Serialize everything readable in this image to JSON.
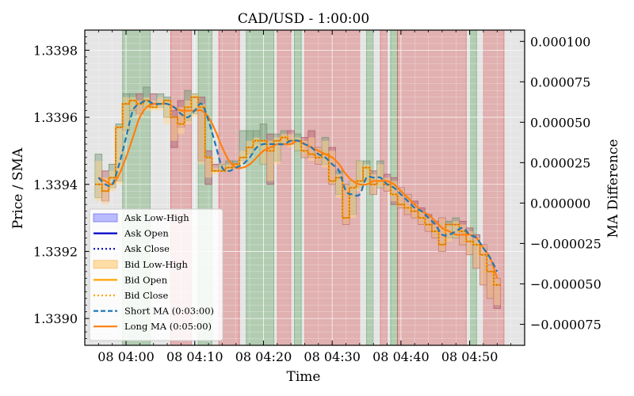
{
  "chart_data": {
    "type": "line",
    "title": "CAD/USD - 1:00:00",
    "xlabel": "Time",
    "ylabel": "Price / SMA",
    "y2label": "MA Difference",
    "xlim": [
      -6,
      58
    ],
    "ylim": [
      1.33892,
      1.33986
    ],
    "y2lim": [
      -8.8e-05,
      0.000107
    ],
    "x_ticks": [
      0,
      10,
      20,
      30,
      40,
      50
    ],
    "x_tick_labels": [
      "08 04:00",
      "08 04:10",
      "08 04:20",
      "08 04:30",
      "08 04:40",
      "08 04:50"
    ],
    "y_ticks": [
      1.339,
      1.3392,
      1.3394,
      1.3396,
      1.3398
    ],
    "y_tick_labels": [
      "1.3390",
      "1.3392",
      "1.3394",
      "1.3396",
      "1.3398"
    ],
    "y2_ticks": [
      -7.5e-05,
      -5e-05,
      -2.5e-05,
      0,
      2.5e-05,
      5e-05,
      7.5e-05,
      0.0001
    ],
    "y2_tick_labels": [
      "−0.000075",
      "−0.000050",
      "−0.000025",
      "0.000000",
      "0.000025",
      "0.000050",
      "0.000075",
      "0.000100"
    ],
    "grid": true,
    "legend_position": "lower-left",
    "colors": {
      "ask": "#0000cc",
      "ask_fill": "#aaaaff",
      "bid": "#ffa500",
      "bid_fill": "#ffd690",
      "short_ma": "#1f77b4",
      "long_ma": "#ff7f0e",
      "bull_region": "#2e8b2e",
      "bear_region": "#d62728",
      "background": "#e5e5e5"
    },
    "regions": [
      {
        "start": -0.5,
        "end": 3.5,
        "trend": "bull"
      },
      {
        "start": 6.5,
        "end": 9.5,
        "trend": "bear"
      },
      {
        "start": 10.5,
        "end": 12.5,
        "trend": "bull"
      },
      {
        "start": 13.5,
        "end": 16.5,
        "trend": "bear"
      },
      {
        "start": 17.5,
        "end": 21.5,
        "trend": "bull"
      },
      {
        "start": 22.0,
        "end": 24.0,
        "trend": "bear"
      },
      {
        "start": 24.5,
        "end": 25.5,
        "trend": "bull"
      },
      {
        "start": 26.0,
        "end": 34.0,
        "trend": "bear"
      },
      {
        "start": 35.0,
        "end": 36.0,
        "trend": "bull"
      },
      {
        "start": 37.0,
        "end": 38.0,
        "trend": "bear"
      },
      {
        "start": 38.5,
        "end": 39.5,
        "trend": "bull"
      },
      {
        "start": 39.5,
        "end": 49.5,
        "trend": "bear"
      },
      {
        "start": 50.0,
        "end": 51.0,
        "trend": "bull"
      },
      {
        "start": 52.0,
        "end": 55.0,
        "trend": "bear"
      }
    ],
    "series": [
      {
        "name": "Bid Close",
        "x": [
          -4,
          -3,
          -2,
          -1,
          0,
          1,
          2,
          3,
          4,
          5,
          6,
          7,
          8,
          9,
          10,
          11,
          12,
          13,
          14,
          15,
          16,
          17,
          18,
          19,
          20,
          21,
          22,
          23,
          24,
          25,
          26,
          27,
          28,
          29,
          30,
          31,
          32,
          33,
          34,
          35,
          36,
          37,
          38,
          39,
          40,
          41,
          42,
          43,
          44,
          45,
          46,
          47,
          48,
          49,
          50,
          51,
          52,
          53,
          54
        ],
        "y": [
          1.3394,
          1.33938,
          1.33942,
          1.33957,
          1.33964,
          1.33965,
          1.33964,
          1.33965,
          1.33963,
          1.33964,
          1.33965,
          1.3396,
          1.33958,
          1.33963,
          1.33966,
          1.33963,
          1.33948,
          1.33944,
          1.33944,
          1.33945,
          1.33946,
          1.33948,
          1.33951,
          1.33953,
          1.33953,
          1.3395,
          1.33953,
          1.33954,
          1.33953,
          1.33953,
          1.3395,
          1.33949,
          1.33948,
          1.33949,
          1.33941,
          1.33942,
          1.3393,
          1.33939,
          1.33941,
          1.33945,
          1.3394,
          1.33941,
          1.3394,
          1.33937,
          1.33934,
          1.33933,
          1.33932,
          1.3393,
          1.33928,
          1.33926,
          1.33922,
          1.33928,
          1.33928,
          1.33926,
          1.33923,
          1.33922,
          1.33919,
          1.33914,
          1.3391
        ]
      },
      {
        "name": "Short MA (0:03:00)",
        "x": [
          -4,
          -3,
          -2,
          -1,
          0,
          1,
          2,
          3,
          4,
          5,
          6,
          7,
          8,
          9,
          10,
          11,
          12,
          13,
          14,
          15,
          16,
          17,
          18,
          19,
          20,
          21,
          22,
          23,
          24,
          25,
          26,
          27,
          28,
          29,
          30,
          31,
          32,
          33,
          34,
          35,
          36,
          37,
          38,
          39,
          40,
          41,
          42,
          43,
          44,
          45,
          46,
          47,
          48,
          49,
          50,
          51,
          52,
          53,
          54
        ],
        "y": [
          1.33942,
          1.3394,
          1.3394,
          1.33946,
          1.33954,
          1.33962,
          1.33964,
          1.33965,
          1.33964,
          1.33964,
          1.33964,
          1.33963,
          1.33961,
          1.3396,
          1.33962,
          1.33964,
          1.33959,
          1.33952,
          1.33945,
          1.33944,
          1.33945,
          1.33946,
          1.33948,
          1.33951,
          1.33952,
          1.33952,
          1.33952,
          1.33952,
          1.33953,
          1.33953,
          1.33952,
          1.33951,
          1.33949,
          1.33948,
          1.33946,
          1.33944,
          1.33938,
          1.33937,
          1.33937,
          1.33942,
          1.33942,
          1.33942,
          1.3394,
          1.33939,
          1.33937,
          1.33935,
          1.33933,
          1.33932,
          1.3393,
          1.33928,
          1.33925,
          1.33925,
          1.33926,
          1.33927,
          1.33925,
          1.33924,
          1.33921,
          1.33918,
          1.33914
        ]
      },
      {
        "name": "Long MA (0:05:00)",
        "x": [
          -4,
          -3,
          -2,
          -1,
          0,
          1,
          2,
          3,
          4,
          5,
          6,
          7,
          8,
          9,
          10,
          11,
          12,
          13,
          14,
          15,
          16,
          17,
          18,
          19,
          20,
          21,
          22,
          23,
          24,
          25,
          26,
          27,
          28,
          29,
          30,
          31,
          32,
          33,
          34,
          35,
          36,
          37,
          38,
          39,
          40,
          41,
          42,
          43,
          44,
          45,
          46,
          47,
          48,
          49,
          50,
          51,
          52,
          53,
          54
        ],
        "y": [
          1.33942,
          1.33941,
          1.3394,
          1.33943,
          1.33948,
          1.33954,
          1.3396,
          1.33963,
          1.33964,
          1.33964,
          1.33964,
          1.33963,
          1.33962,
          1.33962,
          1.33962,
          1.33962,
          1.3396,
          1.33956,
          1.33951,
          1.33947,
          1.33945,
          1.33945,
          1.33946,
          1.33948,
          1.3395,
          1.33951,
          1.33952,
          1.33952,
          1.33952,
          1.33953,
          1.33952,
          1.33951,
          1.3395,
          1.33949,
          1.33948,
          1.33946,
          1.33943,
          1.33941,
          1.3394,
          1.3394,
          1.33941,
          1.33941,
          1.33941,
          1.3394,
          1.33938,
          1.33936,
          1.33934,
          1.33932,
          1.33931,
          1.33929,
          1.33927,
          1.33926,
          1.33925,
          1.33925,
          1.33925,
          1.33924,
          1.33921,
          1.33918,
          1.33912
        ]
      }
    ],
    "candles": [
      {
        "x": -4,
        "bid_lo": 1.33935,
        "bid_hi": 1.33947,
        "ask_lo": 1.33936,
        "ask_hi": 1.33949
      },
      {
        "x": -3,
        "bid_lo": 1.33934,
        "bid_hi": 1.33942,
        "ask_lo": 1.33935,
        "ask_hi": 1.33944
      },
      {
        "x": -2,
        "bid_lo": 1.33938,
        "bid_hi": 1.33944,
        "ask_lo": 1.33939,
        "ask_hi": 1.33946
      },
      {
        "x": -1,
        "bid_lo": 1.3394,
        "bid_hi": 1.33957,
        "ask_lo": 1.33941,
        "ask_hi": 1.33958
      },
      {
        "x": 0,
        "bid_lo": 1.33955,
        "bid_hi": 1.33966,
        "ask_lo": 1.33956,
        "ask_hi": 1.33967
      },
      {
        "x": 1,
        "bid_lo": 1.33962,
        "bid_hi": 1.33966,
        "ask_lo": 1.33962,
        "ask_hi": 1.33967
      },
      {
        "x": 2,
        "bid_lo": 1.3396,
        "bid_hi": 1.33965,
        "ask_lo": 1.33961,
        "ask_hi": 1.33967
      },
      {
        "x": 3,
        "bid_lo": 1.33962,
        "bid_hi": 1.33966,
        "ask_lo": 1.33963,
        "ask_hi": 1.33969
      },
      {
        "x": 4,
        "bid_lo": 1.33962,
        "bid_hi": 1.33965,
        "ask_lo": 1.33963,
        "ask_hi": 1.33967
      },
      {
        "x": 5,
        "bid_lo": 1.33962,
        "bid_hi": 1.33966,
        "ask_lo": 1.33963,
        "ask_hi": 1.33967
      },
      {
        "x": 6,
        "bid_lo": 1.33958,
        "bid_hi": 1.33965,
        "ask_lo": 1.3396,
        "ask_hi": 1.33966
      },
      {
        "x": 7,
        "bid_lo": 1.33953,
        "bid_hi": 1.3396,
        "ask_lo": 1.33951,
        "ask_hi": 1.33962
      },
      {
        "x": 8,
        "bid_lo": 1.33955,
        "bid_hi": 1.33963,
        "ask_lo": 1.33957,
        "ask_hi": 1.33965
      },
      {
        "x": 9,
        "bid_lo": 1.33958,
        "bid_hi": 1.33965,
        "ask_lo": 1.33959,
        "ask_hi": 1.33968
      },
      {
        "x": 10,
        "bid_lo": 1.3396,
        "bid_hi": 1.33967,
        "ask_lo": 1.33961,
        "ask_hi": 1.33967
      },
      {
        "x": 11,
        "bid_lo": 1.33946,
        "bid_hi": 1.33964,
        "ask_lo": 1.33947,
        "ask_hi": 1.33966
      },
      {
        "x": 12,
        "bid_lo": 1.33942,
        "bid_hi": 1.33948,
        "ask_lo": 1.3394,
        "ask_hi": 1.3395
      },
      {
        "x": 13,
        "bid_lo": 1.33943,
        "bid_hi": 1.33945,
        "ask_lo": 1.33944,
        "ask_hi": 1.33946
      },
      {
        "x": 14,
        "bid_lo": 1.33944,
        "bid_hi": 1.33946,
        "ask_lo": 1.33944,
        "ask_hi": 1.33946
      },
      {
        "x": 15,
        "bid_lo": 1.33944,
        "bid_hi": 1.33946,
        "ask_lo": 1.33945,
        "ask_hi": 1.33947
      },
      {
        "x": 16,
        "bid_lo": 1.33945,
        "bid_hi": 1.33946,
        "ask_lo": 1.33945,
        "ask_hi": 1.33947
      },
      {
        "x": 17,
        "bid_lo": 1.33946,
        "bid_hi": 1.3395,
        "ask_lo": 1.33947,
        "ask_hi": 1.33956
      },
      {
        "x": 18,
        "bid_lo": 1.33948,
        "bid_hi": 1.33953,
        "ask_lo": 1.33949,
        "ask_hi": 1.33956
      },
      {
        "x": 19,
        "bid_lo": 1.33951,
        "bid_hi": 1.33954,
        "ask_lo": 1.33952,
        "ask_hi": 1.33956
      },
      {
        "x": 20,
        "bid_lo": 1.33946,
        "bid_hi": 1.33953,
        "ask_lo": 1.33946,
        "ask_hi": 1.33958
      },
      {
        "x": 21,
        "bid_lo": 1.33941,
        "bid_hi": 1.33953,
        "ask_lo": 1.3394,
        "ask_hi": 1.33955
      },
      {
        "x": 22,
        "bid_lo": 1.33946,
        "bid_hi": 1.33954,
        "ask_lo": 1.33947,
        "ask_hi": 1.33955
      },
      {
        "x": 23,
        "bid_lo": 1.33952,
        "bid_hi": 1.33955,
        "ask_lo": 1.33952,
        "ask_hi": 1.33956
      },
      {
        "x": 24,
        "bid_lo": 1.33951,
        "bid_hi": 1.33955,
        "ask_lo": 1.33952,
        "ask_hi": 1.33956
      },
      {
        "x": 25,
        "bid_lo": 1.3395,
        "bid_hi": 1.33954,
        "ask_lo": 1.3395,
        "ask_hi": 1.33955
      },
      {
        "x": 26,
        "bid_lo": 1.33948,
        "bid_hi": 1.33953,
        "ask_lo": 1.33948,
        "ask_hi": 1.33954
      },
      {
        "x": 27,
        "bid_lo": 1.33947,
        "bid_hi": 1.33954,
        "ask_lo": 1.33948,
        "ask_hi": 1.33956
      },
      {
        "x": 28,
        "bid_lo": 1.33946,
        "bid_hi": 1.33951,
        "ask_lo": 1.33946,
        "ask_hi": 1.33951
      },
      {
        "x": 29,
        "bid_lo": 1.33945,
        "bid_hi": 1.33953,
        "ask_lo": 1.33946,
        "ask_hi": 1.33954
      },
      {
        "x": 30,
        "bid_lo": 1.3394,
        "bid_hi": 1.3395,
        "ask_lo": 1.3394,
        "ask_hi": 1.33951
      },
      {
        "x": 31,
        "bid_lo": 1.33936,
        "bid_hi": 1.33943,
        "ask_lo": 1.33937,
        "ask_hi": 1.33944
      },
      {
        "x": 32,
        "bid_lo": 1.33928,
        "bid_hi": 1.3394,
        "ask_lo": 1.33928,
        "ask_hi": 1.3394
      },
      {
        "x": 33,
        "bid_lo": 1.3393,
        "bid_hi": 1.33941,
        "ask_lo": 1.33931,
        "ask_hi": 1.33941
      },
      {
        "x": 34,
        "bid_lo": 1.33938,
        "bid_hi": 1.33947,
        "ask_lo": 1.33939,
        "ask_hi": 1.33947
      },
      {
        "x": 35,
        "bid_lo": 1.3394,
        "bid_hi": 1.33946,
        "ask_lo": 1.33941,
        "ask_hi": 1.33947
      },
      {
        "x": 36,
        "bid_lo": 1.33937,
        "bid_hi": 1.33943,
        "ask_lo": 1.33937,
        "ask_hi": 1.33944
      },
      {
        "x": 37,
        "bid_lo": 1.33939,
        "bid_hi": 1.33946,
        "ask_lo": 1.33939,
        "ask_hi": 1.33947
      },
      {
        "x": 38,
        "bid_lo": 1.33938,
        "bid_hi": 1.33942,
        "ask_lo": 1.33938,
        "ask_hi": 1.33943
      },
      {
        "x": 39,
        "bid_lo": 1.33935,
        "bid_hi": 1.33941,
        "ask_lo": 1.33934,
        "ask_hi": 1.33942
      },
      {
        "x": 40,
        "bid_lo": 1.33933,
        "bid_hi": 1.33939,
        "ask_lo": 1.33933,
        "ask_hi": 1.33939
      },
      {
        "x": 41,
        "bid_lo": 1.33931,
        "bid_hi": 1.33937,
        "ask_lo": 1.33931,
        "ask_hi": 1.33937
      },
      {
        "x": 42,
        "bid_lo": 1.3393,
        "bid_hi": 1.33934,
        "ask_lo": 1.3393,
        "ask_hi": 1.33935
      },
      {
        "x": 43,
        "bid_lo": 1.33928,
        "bid_hi": 1.33932,
        "ask_lo": 1.33928,
        "ask_hi": 1.33933
      },
      {
        "x": 44,
        "bid_lo": 1.33926,
        "bid_hi": 1.3393,
        "ask_lo": 1.33926,
        "ask_hi": 1.33931
      },
      {
        "x": 45,
        "bid_lo": 1.33924,
        "bid_hi": 1.33928,
        "ask_lo": 1.33924,
        "ask_hi": 1.33929
      },
      {
        "x": 46,
        "bid_lo": 1.3392,
        "bid_hi": 1.3393,
        "ask_lo": 1.3392,
        "ask_hi": 1.3393
      },
      {
        "x": 47,
        "bid_lo": 1.33923,
        "bid_hi": 1.33928,
        "ask_lo": 1.33924,
        "ask_hi": 1.33929
      },
      {
        "x": 48,
        "bid_lo": 1.33924,
        "bid_hi": 1.33929,
        "ask_lo": 1.33924,
        "ask_hi": 1.3393
      },
      {
        "x": 49,
        "bid_lo": 1.33922,
        "bid_hi": 1.33928,
        "ask_lo": 1.33922,
        "ask_hi": 1.33929
      },
      {
        "x": 50,
        "bid_lo": 1.33919,
        "bid_hi": 1.33926,
        "ask_lo": 1.33919,
        "ask_hi": 1.33927
      },
      {
        "x": 51,
        "bid_lo": 1.33915,
        "bid_hi": 1.33924,
        "ask_lo": 1.33915,
        "ask_hi": 1.33925
      },
      {
        "x": 52,
        "bid_lo": 1.3391,
        "bid_hi": 1.33922,
        "ask_lo": 1.3391,
        "ask_hi": 1.33922
      },
      {
        "x": 53,
        "bid_lo": 1.33906,
        "bid_hi": 1.33916,
        "ask_lo": 1.33906,
        "ask_hi": 1.33916
      },
      {
        "x": 54,
        "bid_lo": 1.33904,
        "bid_hi": 1.33912,
        "ask_lo": 1.33903,
        "ask_hi": 1.33912
      }
    ],
    "legend": [
      {
        "label": "Ask Low-High",
        "style": "patch-ask"
      },
      {
        "label": "Ask Open",
        "style": "solid-ask"
      },
      {
        "label": "Ask Close",
        "style": "dotted-ask"
      },
      {
        "label": "Bid Low-High",
        "style": "patch-bid"
      },
      {
        "label": "Bid Open",
        "style": "solid-bid"
      },
      {
        "label": "Bid Close",
        "style": "dotted-bid"
      },
      {
        "label": "Short MA (0:03:00)",
        "style": "dashed-short"
      },
      {
        "label": "Long MA (0:05:00)",
        "style": "solid-long"
      }
    ]
  }
}
